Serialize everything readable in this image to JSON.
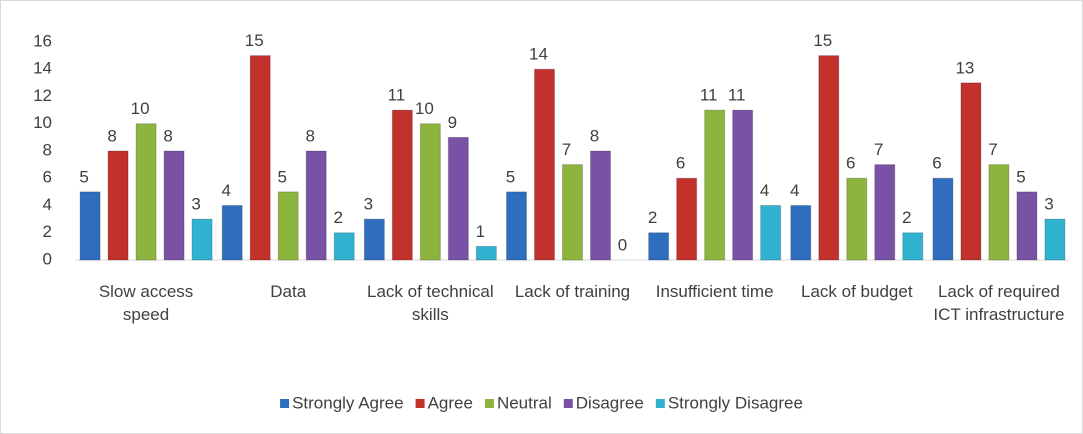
{
  "chart_data": {
    "type": "bar",
    "categories": [
      "Slow access speed",
      "Data",
      "Lack of technical skills",
      "Lack of training",
      "Insufficient time",
      "Lack of budget",
      "Lack of required ICT infrastructure"
    ],
    "series": [
      {
        "name": "Strongly Agree",
        "color": "#2f6ebf",
        "values": [
          5,
          4,
          3,
          5,
          2,
          4,
          6
        ]
      },
      {
        "name": "Agree",
        "color": "#c3312d",
        "values": [
          8,
          15,
          11,
          14,
          6,
          15,
          13
        ]
      },
      {
        "name": "Neutral",
        "color": "#8db43c",
        "values": [
          10,
          5,
          10,
          7,
          11,
          6,
          7
        ]
      },
      {
        "name": "Disagree",
        "color": "#7a52a5",
        "values": [
          8,
          8,
          9,
          8,
          11,
          7,
          5
        ]
      },
      {
        "name": "Strongly Disagree",
        "color": "#2fb3d1",
        "values": [
          3,
          2,
          1,
          0,
          4,
          2,
          3
        ]
      }
    ],
    "ylim": [
      0,
      16
    ],
    "yticks": [
      0,
      2,
      4,
      6,
      8,
      10,
      12,
      14,
      16
    ],
    "grid": false,
    "legend": "bottom"
  }
}
